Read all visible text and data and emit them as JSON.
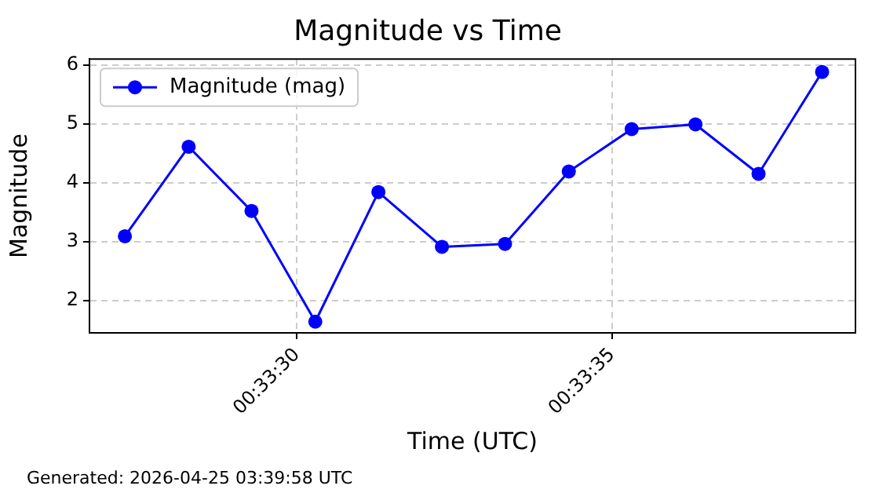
{
  "chart_data": {
    "type": "line",
    "title": "Magnitude vs Time",
    "xlabel": "Time (UTC)",
    "ylabel": "Magnitude",
    "annotations": [
      "Generated: 2026-04-25 03:39:58 UTC"
    ],
    "x": [
      0.557575,
      0.557856,
      0.558133,
      0.558414,
      0.558692,
      0.558972,
      0.55925,
      0.559531,
      0.559808,
      0.560089,
      0.560367,
      0.560647
    ],
    "series": [
      {
        "name": "Magnitude (mag)",
        "color": "#0000ff",
        "values": [
          3.09,
          4.61,
          3.52,
          1.64,
          3.84,
          2.91,
          2.96,
          4.19,
          4.91,
          4.99,
          4.15,
          5.88
        ]
      }
    ],
    "xlim": [
      0.557419,
      0.560794
    ],
    "xticks": [
      {
        "value": 0.558333,
        "label": "00:33:30"
      },
      {
        "value": 0.559722,
        "label": "00:33:35"
      }
    ],
    "ylim": [
      1.45,
      6.1
    ],
    "yticks": [
      2,
      3,
      4,
      5,
      6
    ],
    "grid": true,
    "legend": "top left",
    "marker": "circle",
    "line_style": "solid"
  }
}
